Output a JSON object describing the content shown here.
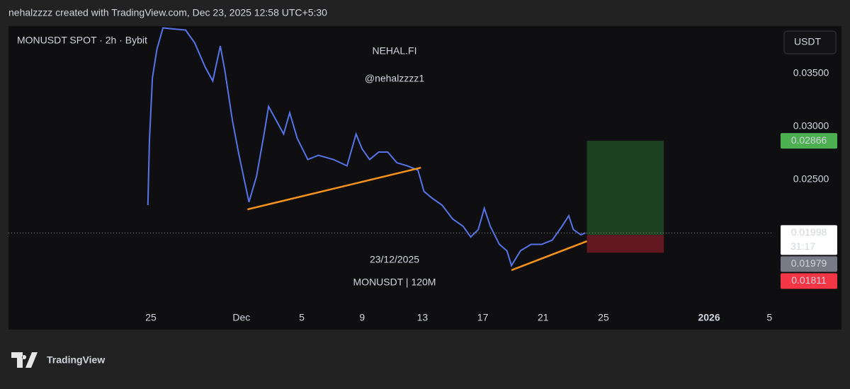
{
  "caption": "nehalzzzz created with TradingView.com, Dec 23, 2025 12:58 UTC+5:30",
  "brand": "TradingView",
  "chart_data": {
    "type": "line",
    "title": "MONUSDT SPOT · 2h · Bybit",
    "currency": "USDT",
    "annotations": [
      "NEHAL.FI",
      "@nehalzzzz1",
      "23/12/2025",
      "MONUSDT | 120M"
    ],
    "x": [
      -0.2,
      -0.1,
      0.1,
      0.4,
      0.8,
      2.3,
      2.9,
      3.6,
      4.1,
      4.6,
      4.9,
      5.4,
      5.8,
      6.2,
      6.5,
      7.0,
      7.5,
      7.8,
      8.3,
      8.8,
      9.2,
      9.7,
      10.4,
      11.1,
      12.1,
      13.0,
      13.6,
      14.0,
      14.5,
      15.1,
      15.7,
      16.3,
      17.0,
      17.7,
      18.1,
      18.6,
      19.3,
      20.0,
      20.7,
      21.2,
      21.7,
      22.1,
      22.5,
      23.1,
      23.6,
      23.9,
      24.5,
      25.2,
      25.9,
      26.6,
      27.2,
      27.7,
      28.0,
      28.5,
      28.8
    ],
    "series": [
      {
        "color": "#5673e8",
        "values": [
          0.0226,
          0.0286,
          0.0346,
          0.0373,
          0.0393,
          0.0391,
          0.0379,
          0.0356,
          0.0343,
          0.0376,
          0.0353,
          0.0306,
          0.0276,
          0.0249,
          0.0229,
          0.0253,
          0.0293,
          0.0319,
          0.0306,
          0.0293,
          0.0313,
          0.0289,
          0.0269,
          0.0273,
          0.0269,
          0.0263,
          0.0293,
          0.0279,
          0.0269,
          0.0276,
          0.0276,
          0.0266,
          0.0263,
          0.0259,
          0.0239,
          0.0233,
          0.0226,
          0.0213,
          0.0206,
          0.0196,
          0.0203,
          0.0223,
          0.0206,
          0.0189,
          0.0183,
          0.0169,
          0.0183,
          0.0189,
          0.0189,
          0.0193,
          0.0205,
          0.0216,
          0.0203,
          0.0198,
          0.01998
        ]
      }
    ],
    "xlim": [
      -9.44,
      41.27
    ],
    "xticks": [
      {
        "value": 0,
        "label": "25"
      },
      {
        "value": 6,
        "label": "Dec"
      },
      {
        "value": 10,
        "label": "5"
      },
      {
        "value": 14,
        "label": "9"
      },
      {
        "value": 18,
        "label": "13"
      },
      {
        "value": 22,
        "label": "17"
      },
      {
        "value": 26,
        "label": "21"
      },
      {
        "value": 30,
        "label": "25"
      },
      {
        "value": 37,
        "label": "2026"
      },
      {
        "value": 41,
        "label": "5"
      }
    ],
    "ylim": [
      0.01087,
      0.0394
    ],
    "yticks": [
      {
        "value": 0.035,
        "label": "0.03500"
      },
      {
        "value": 0.03,
        "label": "0.03000"
      },
      {
        "value": 0.025,
        "label": "0.02500"
      }
    ],
    "trendlines": [
      {
        "color": "#f7931a",
        "x": [
          6.4,
          17.9
        ],
        "y": [
          0.0222,
          0.02613
        ]
      },
      {
        "color": "#f7931a",
        "x": [
          23.9,
          28.9
        ],
        "y": [
          0.01647,
          0.0192
        ]
      }
    ],
    "position": {
      "x": [
        28.9,
        34.0
      ],
      "entry": 0.01979,
      "target": 0.02866,
      "stop": 0.01811
    },
    "price_labels": [
      {
        "value": 0.02866,
        "color": "#4caf50",
        "text_color": "#ffffff"
      },
      {
        "value": 0.01998,
        "color": "#ffffff",
        "text_color": "#131722",
        "countdown": "31:17"
      },
      {
        "value": 0.01979,
        "color": "#787b86",
        "text_color": "#ffffff"
      },
      {
        "value": 0.01811,
        "color": "#f23645",
        "text_color": "#ffffff"
      }
    ]
  }
}
